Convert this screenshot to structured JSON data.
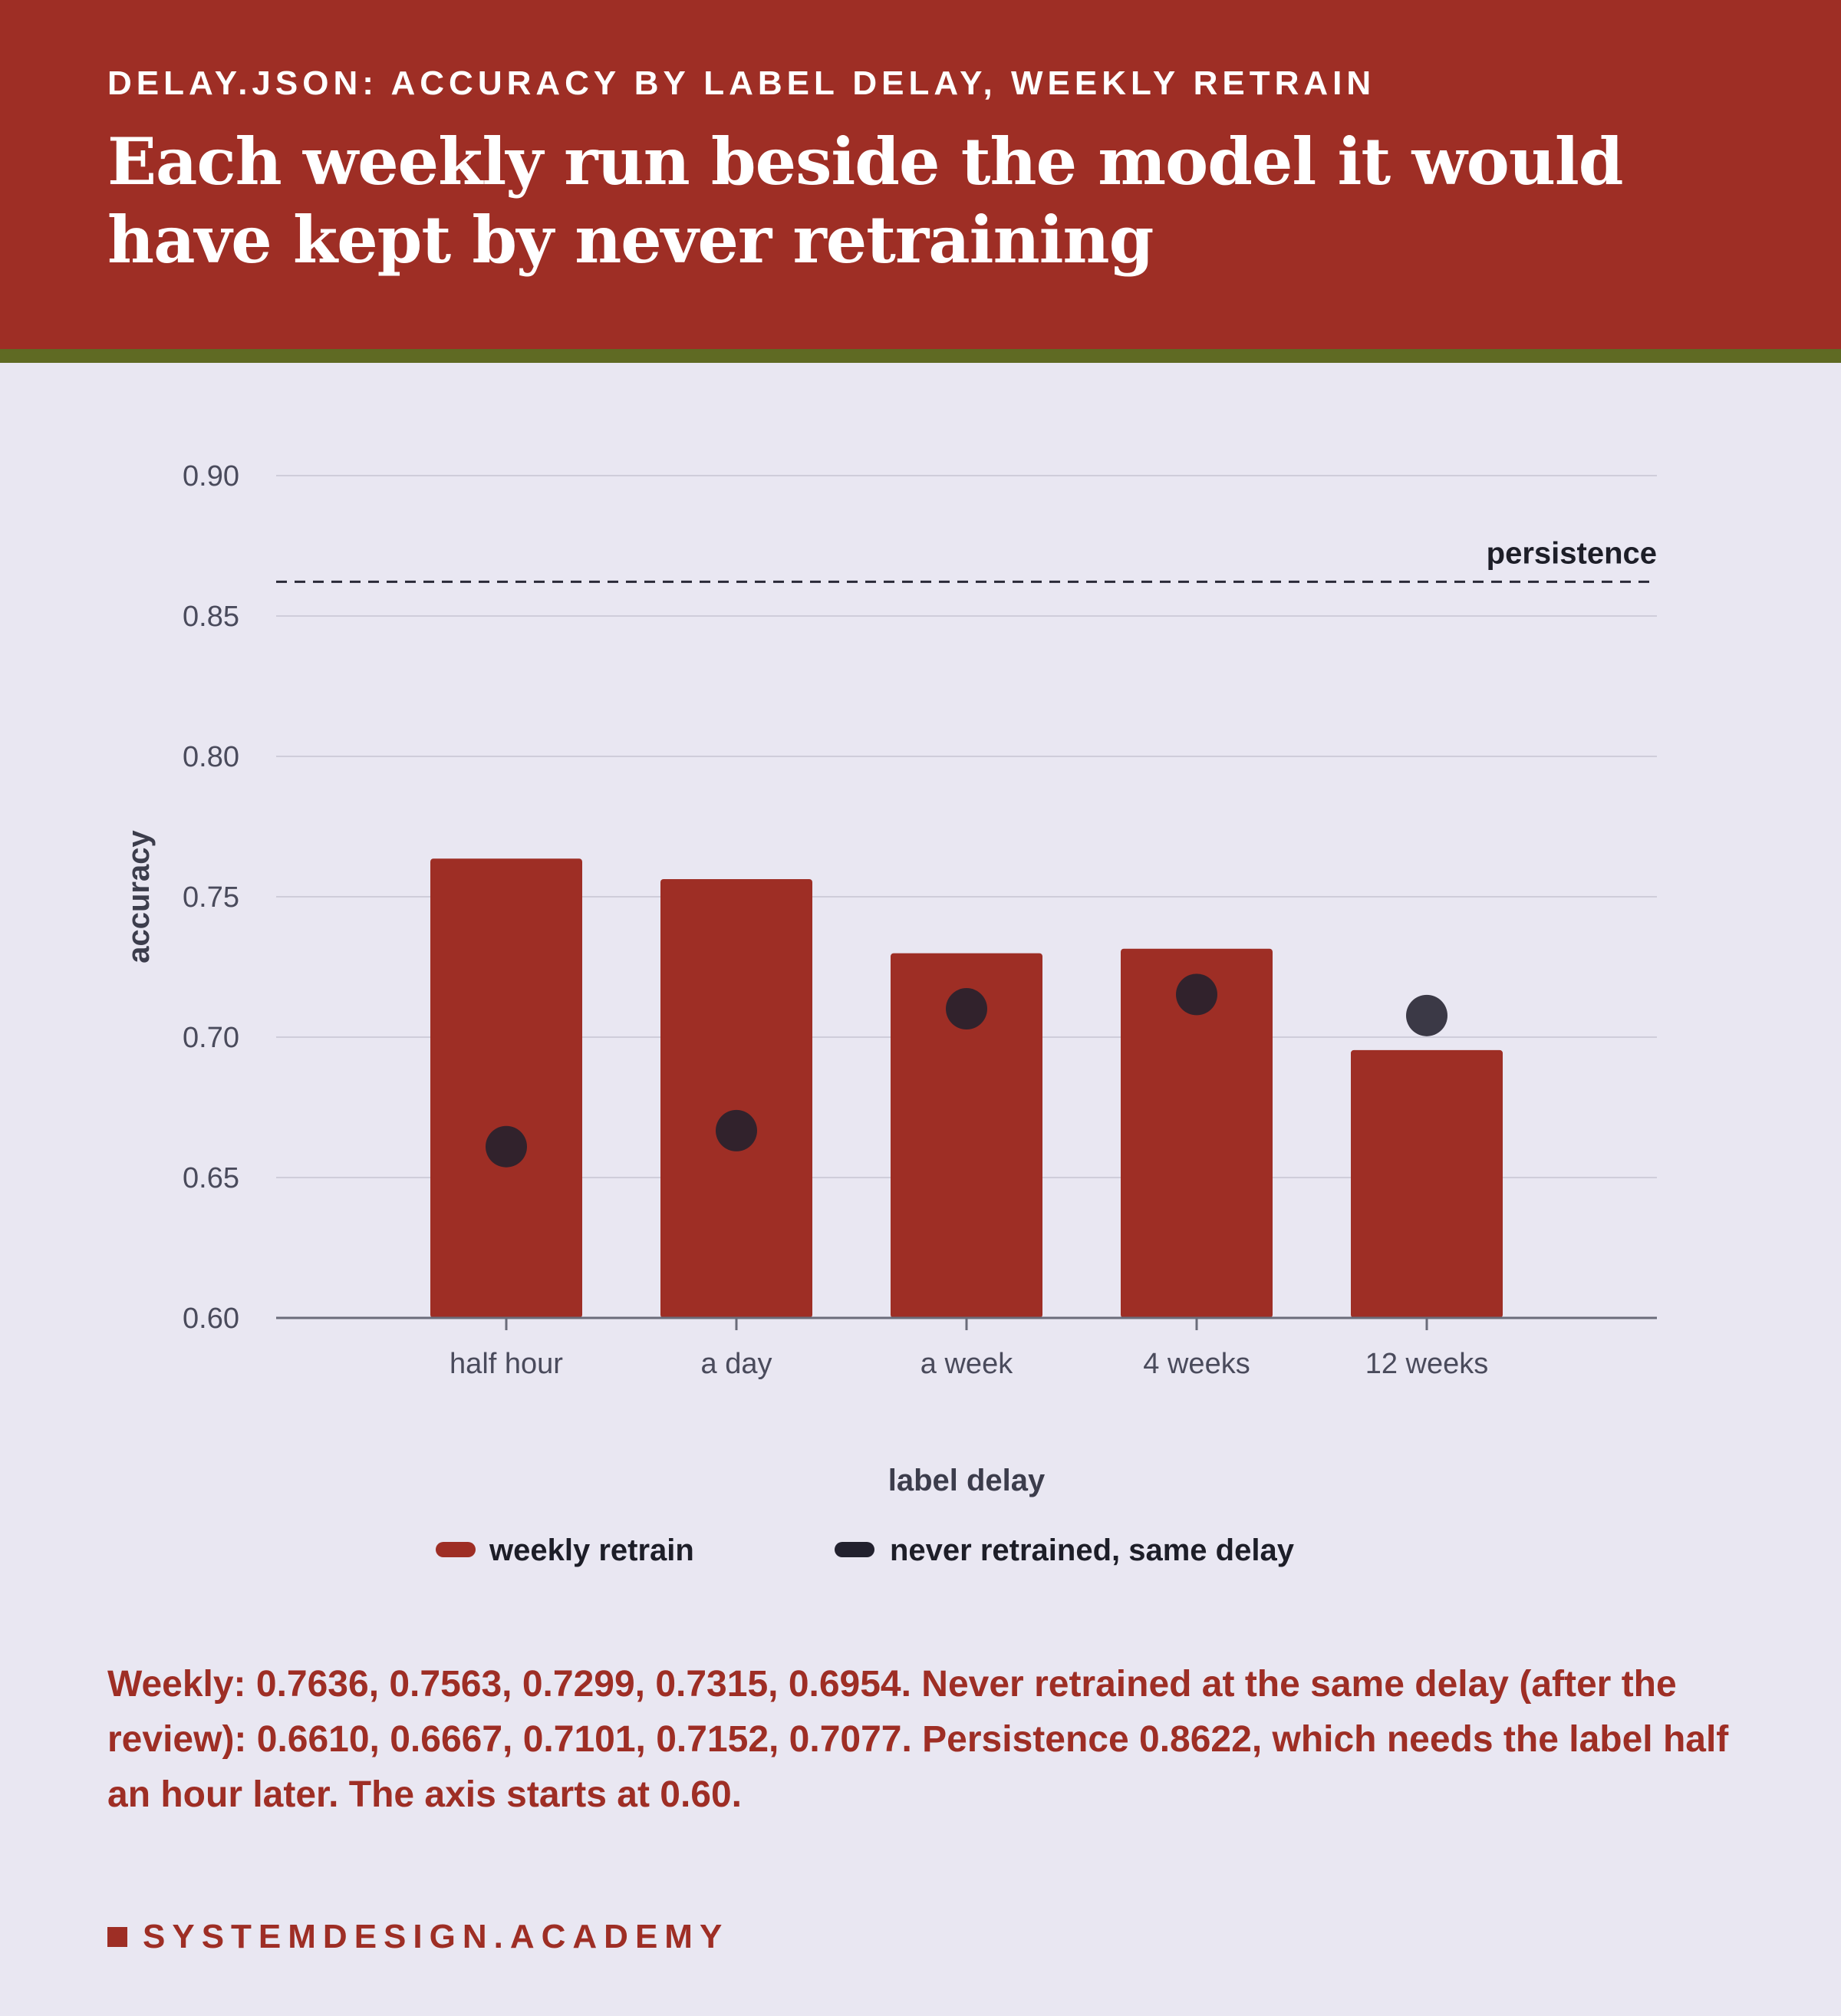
{
  "header": {
    "kicker": "DELAY.JSON: ACCURACY BY LABEL DELAY, WEEKLY RETRAIN",
    "title": "Each weekly run beside the model it would have kept by never retraining"
  },
  "chart_data": {
    "type": "bar",
    "categories": [
      "half hour",
      "a day",
      "a week",
      "4 weeks",
      "12 weeks"
    ],
    "series": [
      {
        "name": "weekly retrain",
        "kind": "bar",
        "color": "#9e2e25",
        "values": [
          0.7636,
          0.7563,
          0.7299,
          0.7315,
          0.6954
        ]
      },
      {
        "name": "never retrained, same delay",
        "kind": "point",
        "color": "#22212e",
        "values": [
          0.661,
          0.6667,
          0.7101,
          0.7152,
          0.7077
        ]
      }
    ],
    "reference_line": {
      "label": "persistence",
      "value": 0.8622,
      "style": "dashed"
    },
    "xlabel": "label delay",
    "ylabel": "accuracy",
    "ylim": [
      0.6,
      0.9
    ],
    "yticks": [
      0.6,
      0.65,
      0.7,
      0.75,
      0.8,
      0.85,
      0.9
    ],
    "ytick_labels": [
      "0.60",
      "0.65",
      "0.70",
      "0.75",
      "0.80",
      "0.85",
      "0.90"
    ],
    "grid": true,
    "legend": "bottom-center"
  },
  "note": "Weekly: 0.7636, 0.7563, 0.7299, 0.7315, 0.6954. Never retrained at the same delay (after the review): 0.6610, 0.6667, 0.7101, 0.7152, 0.7077. Persistence 0.8622, which needs the label half an hour later. The axis starts at 0.60.",
  "footer": {
    "brand": "SYSTEMDESIGN.ACADEMY"
  }
}
